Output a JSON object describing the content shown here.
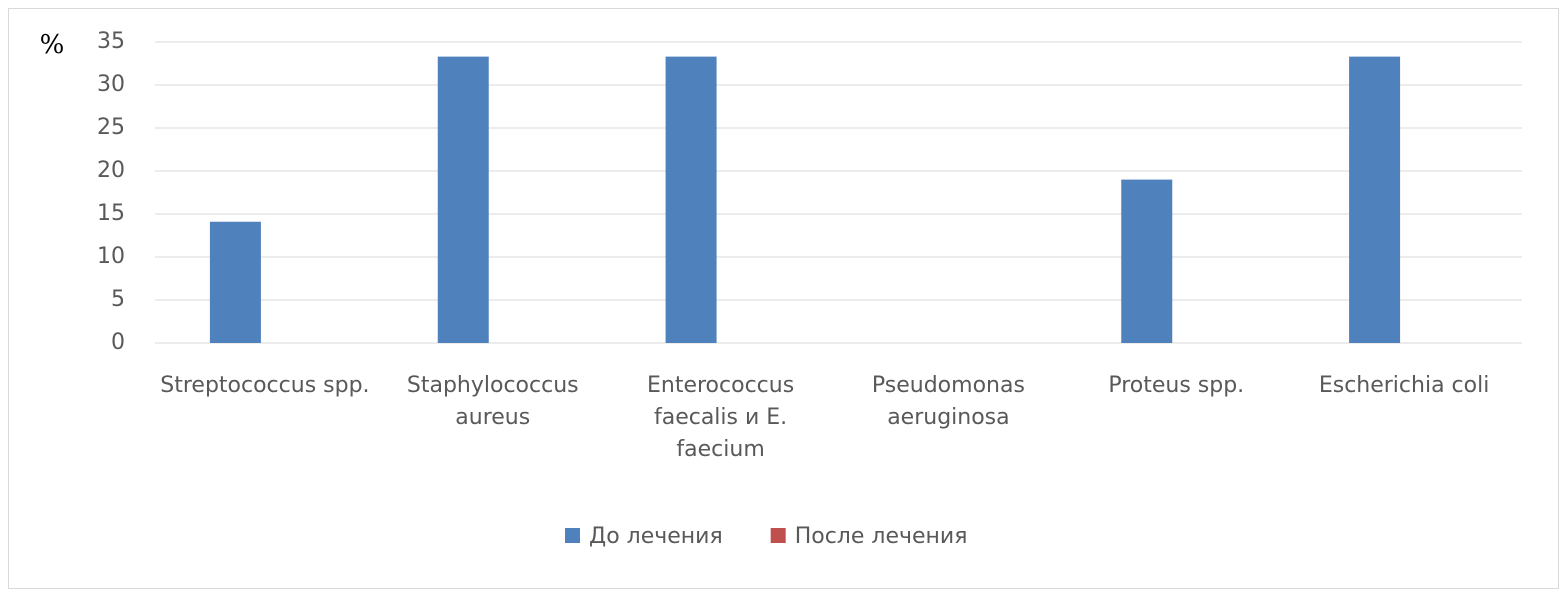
{
  "chart_data": {
    "type": "bar",
    "y_unit_label": "%",
    "categories": [
      "Streptococcus spp.",
      "Staphylococcus aureus",
      "Enterococcus faecalis и E. faecium",
      "Pseudomonas aeruginosa",
      "Proteus spp.",
      "Escherichia coli"
    ],
    "series": [
      {
        "name": "До лечения",
        "color": "#4f81bd",
        "values": [
          14.1,
          33.3,
          33.3,
          0,
          19,
          33.3
        ]
      },
      {
        "name": "После лечения",
        "color": "#c0504d",
        "values": [
          0,
          0,
          0,
          0,
          0,
          0
        ]
      }
    ],
    "ylim": [
      0,
      35
    ],
    "yticks": [
      0,
      5,
      10,
      15,
      20,
      25,
      30,
      35
    ],
    "grid": true,
    "legend": "bottom"
  }
}
